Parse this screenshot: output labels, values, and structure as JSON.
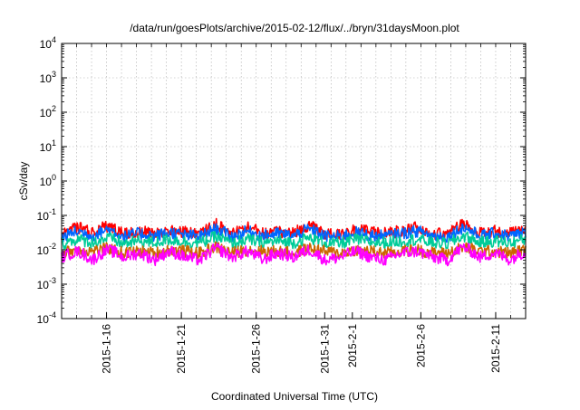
{
  "chart_data": {
    "type": "line",
    "title": "/data/run/goesPlots/archive/2015-02-12/flux/../bryn/31daysMoon.plot",
    "xlabel": "Coordinated Universal Time (UTC)",
    "ylabel": "cSv/day",
    "yscale": "log",
    "ylim": [
      0.0001,
      10000
    ],
    "y_ticks": [
      {
        "exp": "-4",
        "value": 0.0001
      },
      {
        "exp": "-3",
        "value": 0.001
      },
      {
        "exp": "-2",
        "value": 0.01
      },
      {
        "exp": "-1",
        "value": 0.1
      },
      {
        "exp": "0",
        "value": 1
      },
      {
        "exp": "1",
        "value": 10
      },
      {
        "exp": "2",
        "value": 100
      },
      {
        "exp": "3",
        "value": 1000
      },
      {
        "exp": "4",
        "value": 10000
      }
    ],
    "xlim": [
      "2015-01-13",
      "2015-02-13"
    ],
    "x_ticks": [
      "2015-1-16",
      "2015-1-21",
      "2015-1-26",
      "2015-1-31",
      "2015-2-1",
      "2015-2-6",
      "2015-2-11"
    ],
    "grid": true,
    "series": [
      {
        "color": "#ff0000",
        "approx_values": [
          0.025,
          0.045,
          0.03,
          0.05,
          0.028,
          0.035,
          0.03,
          0.04,
          0.032,
          0.03,
          0.055,
          0.028,
          0.045,
          0.03,
          0.035,
          0.03,
          0.05,
          0.03,
          0.028,
          0.04,
          0.032,
          0.03,
          0.035,
          0.045,
          0.03,
          0.028,
          0.06,
          0.03,
          0.035,
          0.03,
          0.04
        ]
      },
      {
        "color": "#0066ff",
        "approx_values": [
          0.022,
          0.035,
          0.025,
          0.04,
          0.024,
          0.03,
          0.025,
          0.032,
          0.026,
          0.025,
          0.04,
          0.024,
          0.035,
          0.025,
          0.03,
          0.025,
          0.04,
          0.025,
          0.024,
          0.032,
          0.026,
          0.025,
          0.03,
          0.035,
          0.025,
          0.024,
          0.045,
          0.025,
          0.03,
          0.025,
          0.032
        ]
      },
      {
        "color": "#00cc99",
        "approx_values": [
          0.015,
          0.02,
          0.016,
          0.022,
          0.015,
          0.018,
          0.016,
          0.02,
          0.017,
          0.016,
          0.024,
          0.015,
          0.02,
          0.016,
          0.018,
          0.016,
          0.022,
          0.016,
          0.015,
          0.02,
          0.017,
          0.016,
          0.018,
          0.02,
          0.016,
          0.015,
          0.025,
          0.016,
          0.018,
          0.016,
          0.02
        ]
      },
      {
        "color": "#cc6600",
        "approx_values": [
          0.008,
          0.01,
          0.009,
          0.011,
          0.008,
          0.009,
          0.008,
          0.01,
          0.009,
          0.008,
          0.012,
          0.008,
          0.01,
          0.009,
          0.009,
          0.008,
          0.011,
          0.009,
          0.008,
          0.01,
          0.009,
          0.008,
          0.009,
          0.01,
          0.008,
          0.008,
          0.012,
          0.009,
          0.009,
          0.008,
          0.01
        ]
      },
      {
        "color": "#ff00ff",
        "approx_values": [
          0.006,
          0.009,
          0.005,
          0.01,
          0.006,
          0.008,
          0.005,
          0.009,
          0.006,
          0.005,
          0.011,
          0.006,
          0.009,
          0.005,
          0.008,
          0.006,
          0.01,
          0.005,
          0.006,
          0.009,
          0.006,
          0.005,
          0.008,
          0.009,
          0.006,
          0.005,
          0.012,
          0.006,
          0.008,
          0.005,
          0.009
        ]
      }
    ]
  }
}
